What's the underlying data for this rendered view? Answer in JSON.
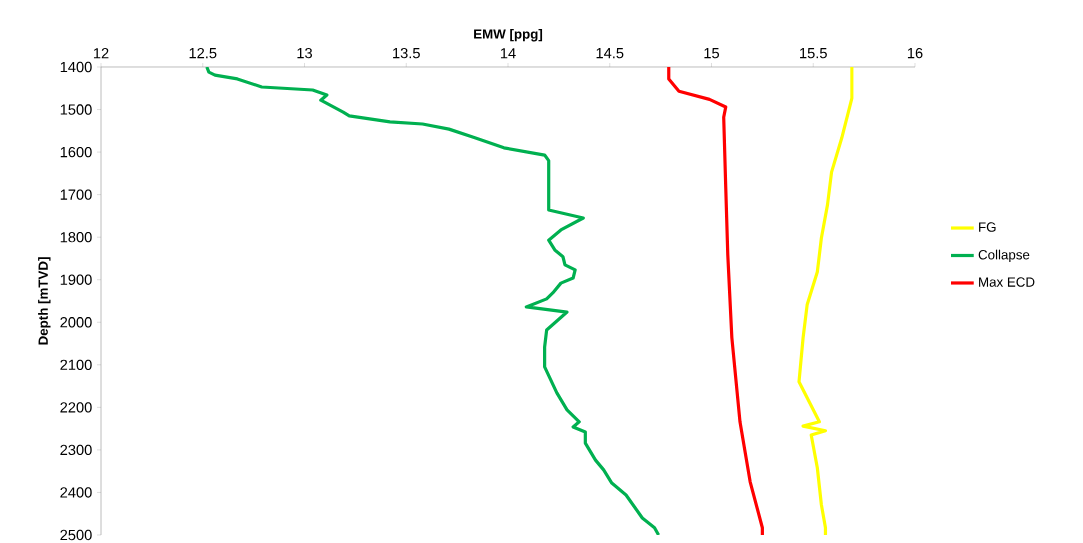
{
  "chart_data": {
    "type": "line",
    "xlabel": "EMW [ppg]",
    "ylabel": "Depth [mTVD]",
    "xlim": [
      12,
      16
    ],
    "xticks": [
      12,
      12.5,
      13,
      13.5,
      14,
      14.5,
      15,
      15.5,
      16
    ],
    "ylim": [
      2500,
      1400
    ],
    "yticks": [
      1400,
      1500,
      1600,
      1700,
      1800,
      1900,
      2000,
      2100,
      2200,
      2300,
      2400,
      2500
    ],
    "grid": false,
    "legend": "right",
    "marker": "none",
    "line_style": "solid",
    "series": [
      {
        "name": "FG",
        "color": "#ffff00",
        "x": [
          15.69,
          15.69,
          15.64,
          15.59,
          15.57,
          15.54,
          15.52,
          15.47,
          15.45,
          15.43,
          15.53,
          15.45,
          15.56,
          15.49,
          15.52,
          15.54,
          15.56,
          15.56
        ],
        "values": [
          1400,
          1473,
          1567,
          1647,
          1724,
          1802,
          1882,
          1959,
          2037,
          2140,
          2234,
          2244,
          2255,
          2265,
          2342,
          2429,
          2483,
          2500
        ]
      },
      {
        "name": "Collapse",
        "color": "#00b050",
        "x": [
          12.52,
          12.53,
          12.56,
          12.67,
          12.79,
          13.04,
          13.11,
          13.08,
          13.19,
          13.22,
          13.42,
          13.58,
          13.71,
          13.83,
          13.98,
          14.18,
          14.2,
          14.2,
          14.37,
          14.26,
          14.2,
          14.23,
          14.27,
          14.28,
          14.33,
          14.32,
          14.26,
          14.22,
          14.19,
          14.09,
          14.29,
          14.19,
          14.18,
          14.18,
          14.24,
          14.29,
          14.35,
          14.32,
          14.38,
          14.38,
          14.43,
          14.47,
          14.51,
          14.58,
          14.66,
          14.72,
          14.74
        ],
        "values": [
          1400,
          1412,
          1419,
          1428,
          1447,
          1454,
          1466,
          1478,
          1506,
          1515,
          1529,
          1534,
          1546,
          1565,
          1590,
          1607,
          1620,
          1736,
          1755,
          1783,
          1807,
          1830,
          1846,
          1865,
          1877,
          1896,
          1908,
          1931,
          1945,
          1964,
          1976,
          2018,
          2058,
          2105,
          2166,
          2206,
          2234,
          2246,
          2258,
          2284,
          2324,
          2347,
          2378,
          2406,
          2460,
          2483,
          2500
        ]
      },
      {
        "name": "Max ECD",
        "color": "#ff0000",
        "x": [
          14.79,
          14.79,
          14.84,
          14.99,
          15.07,
          15.06,
          15.07,
          15.08,
          15.1,
          15.14,
          15.19,
          15.25,
          15.25
        ],
        "values": [
          1400,
          1428,
          1457,
          1476,
          1494,
          1518,
          1683,
          1841,
          2036,
          2234,
          2375,
          2483,
          2500
        ]
      }
    ]
  }
}
